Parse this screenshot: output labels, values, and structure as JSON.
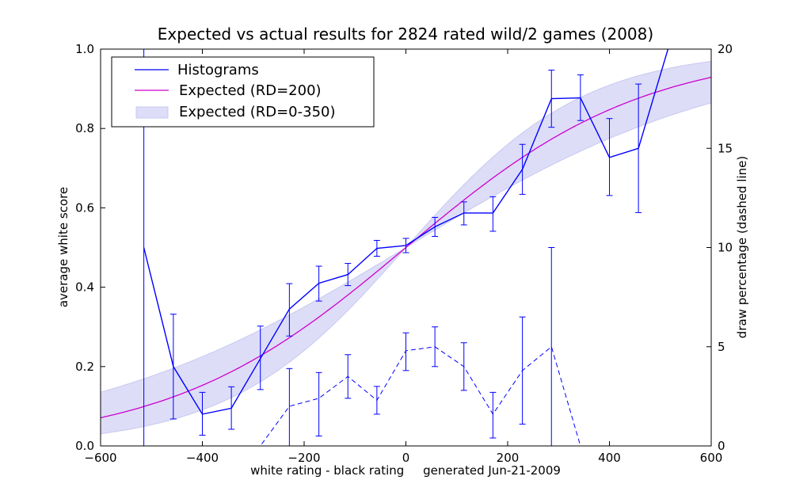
{
  "chart_data": {
    "type": "line",
    "title": "Expected vs actual results for 2824 rated wild/2 games (2008)",
    "xlabel": "white rating - black rating     generated Jun-21-2009",
    "ylabel": "average white score",
    "y2label": "draw percentage (dashed line)",
    "xlim": [
      -600,
      600
    ],
    "ylim": [
      0,
      1.0
    ],
    "y2lim": [
      0,
      20
    ],
    "xticks": [
      "−600",
      "−400",
      "−200",
      "0",
      "200",
      "400",
      "600"
    ],
    "xtick_values": [
      -600,
      -400,
      -200,
      0,
      200,
      400,
      600
    ],
    "yticks": [
      "0.0",
      "0.2",
      "0.4",
      "0.6",
      "0.8",
      "1.0"
    ],
    "ytick_values": [
      0,
      0.2,
      0.4,
      0.6,
      0.8,
      1.0
    ],
    "y2ticks": [
      "0",
      "5",
      "10",
      "15",
      "20"
    ],
    "y2tick_values": [
      0,
      5,
      10,
      15,
      20
    ],
    "grid": false,
    "legend": {
      "placement": "top-left",
      "entries": [
        "Histograms",
        "Expected (RD=200)",
        "Expected (RD=0-350)"
      ]
    },
    "colors": {
      "histogram": "#0000ff",
      "expected": "#cc00cc",
      "band_fill": "#ddddf8",
      "band_edge": "#c8c8f0"
    },
    "series": [
      {
        "name": "Histograms",
        "style": "solid",
        "x": [
          -515,
          -457,
          -400,
          -343,
          -286,
          -229,
          -171,
          -114,
          -57,
          0,
          57,
          114,
          171,
          229,
          286,
          343,
          400,
          457,
          515
        ],
        "y": [
          0.5,
          0.2,
          0.08,
          0.095,
          0.22,
          0.345,
          0.41,
          0.432,
          0.498,
          0.505,
          0.552,
          0.587,
          0.587,
          0.697,
          0.875,
          0.877,
          0.727,
          0.75,
          1.0
        ],
        "err_low": [
          0,
          0.068,
          0.027,
          0.042,
          0.142,
          0.277,
          0.365,
          0.404,
          0.478,
          0.487,
          0.528,
          0.557,
          0.541,
          0.634,
          0.803,
          0.82,
          0.631,
          0.588,
          null
        ],
        "err_high": [
          1.0,
          0.332,
          0.135,
          0.149,
          0.302,
          0.409,
          0.453,
          0.46,
          0.518,
          0.523,
          0.576,
          0.615,
          0.628,
          0.76,
          0.947,
          0.935,
          0.825,
          0.912,
          null
        ]
      },
      {
        "name": "draw percentage",
        "style": "dashed",
        "axis": "right",
        "x": [
          -515,
          -457,
          -400,
          -343,
          -286,
          -229,
          -171,
          -114,
          -57,
          0,
          57,
          114,
          171,
          229,
          286,
          343,
          400,
          457,
          515
        ],
        "y": [
          0,
          0,
          0,
          0,
          0,
          2.0,
          2.4,
          3.5,
          2.3,
          4.8,
          5.0,
          4.0,
          1.6,
          3.8,
          5.0,
          0,
          0,
          0,
          0
        ],
        "err_low": [
          null,
          null,
          null,
          null,
          null,
          0,
          0.5,
          2.4,
          1.6,
          3.8,
          4.0,
          2.8,
          0.4,
          1.1,
          0,
          null,
          null,
          null,
          null
        ],
        "err_high": [
          null,
          null,
          null,
          null,
          null,
          3.9,
          3.7,
          4.6,
          3.0,
          5.7,
          6.0,
          5.2,
          2.7,
          6.5,
          10.0,
          null,
          null,
          null,
          null
        ]
      },
      {
        "name": "Expected (RD=200)",
        "style": "solid",
        "formula": "1/(1+10^(-x/400))"
      },
      {
        "name": "Expected (RD=0-350)",
        "style": "band",
        "formula": "1/(1+10^(-g(RD)x/400)), RD from 0 to 350"
      }
    ]
  }
}
